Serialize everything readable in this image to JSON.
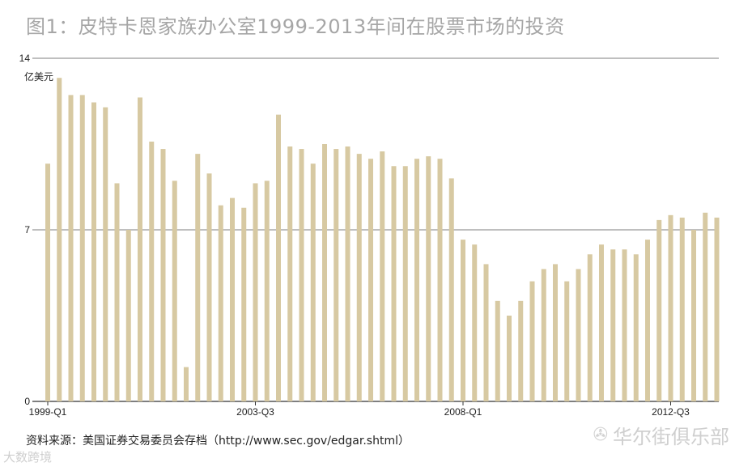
{
  "title": "图1：皮特卡恩家族办公室1999-2013年间在股票市场的投资",
  "source": "资料来源：美国证券交易委员会存档（http://www.sec.gov/edgar.shtml）",
  "watermark": {
    "right_text": "华尔街俱乐部",
    "right_icon": "wechat-icon",
    "left_text": "大数跨境"
  },
  "colors": {
    "bar": "#d7c9a2",
    "gridline": "#555555",
    "title": "#a6a6a6"
  },
  "chart_data": {
    "type": "bar",
    "ylabel": "亿美元",
    "ylim": [
      0,
      14
    ],
    "yticks": [
      0,
      7,
      14
    ],
    "grid": true,
    "xtick_labels": [
      {
        "index": 0,
        "label": "1999-Q1"
      },
      {
        "index": 18,
        "label": "2003-Q3"
      },
      {
        "index": 36,
        "label": "2008-Q1"
      },
      {
        "index": 54,
        "label": "2012-Q3"
      }
    ],
    "categories": [
      "1999-Q1",
      "1999-Q2",
      "1999-Q3",
      "1999-Q4",
      "2000-Q1",
      "2000-Q2",
      "2000-Q3",
      "2000-Q4",
      "2001-Q1",
      "2001-Q2",
      "2001-Q3",
      "2001-Q4",
      "2002-Q1",
      "2002-Q2",
      "2002-Q3",
      "2002-Q4",
      "2003-Q1",
      "2003-Q2",
      "2003-Q3",
      "2003-Q4",
      "2004-Q1",
      "2004-Q2",
      "2004-Q3",
      "2004-Q4",
      "2005-Q1",
      "2005-Q2",
      "2005-Q3",
      "2005-Q4",
      "2006-Q1",
      "2006-Q2",
      "2006-Q3",
      "2006-Q4",
      "2007-Q1",
      "2007-Q2",
      "2007-Q3",
      "2007-Q4",
      "2008-Q1",
      "2008-Q2",
      "2008-Q3",
      "2008-Q4",
      "2009-Q1",
      "2009-Q2",
      "2009-Q3",
      "2009-Q4",
      "2010-Q1",
      "2010-Q2",
      "2010-Q3",
      "2010-Q4",
      "2011-Q1",
      "2011-Q2",
      "2011-Q3",
      "2011-Q4",
      "2012-Q1",
      "2012-Q2",
      "2012-Q3",
      "2012-Q4",
      "2013-Q1",
      "2013-Q2",
      "2013-Q3"
    ],
    "values": [
      9.7,
      13.2,
      12.5,
      12.5,
      12.2,
      12.0,
      8.9,
      7.0,
      12.4,
      10.6,
      10.3,
      9.0,
      1.4,
      10.1,
      9.3,
      8.0,
      8.3,
      7.9,
      8.9,
      9.0,
      11.7,
      10.4,
      10.3,
      9.7,
      10.5,
      10.3,
      10.4,
      10.1,
      9.9,
      10.2,
      9.6,
      9.6,
      9.9,
      10.0,
      9.9,
      9.1,
      6.6,
      6.4,
      5.6,
      4.1,
      3.5,
      4.1,
      4.9,
      5.4,
      5.6,
      4.9,
      5.4,
      6.0,
      6.4,
      6.2,
      6.2,
      6.0,
      6.6,
      7.4,
      7.6,
      7.5,
      7.0,
      7.7,
      7.5
    ]
  }
}
